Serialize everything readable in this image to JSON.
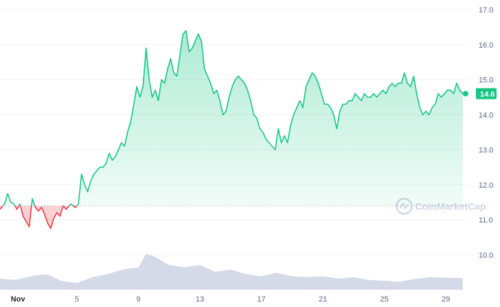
{
  "chart_data": {
    "type": "line",
    "x_tick_labels": [
      "Nov",
      "5",
      "9",
      "13",
      "17",
      "21",
      "25",
      "29"
    ],
    "y_tick_labels": [
      "10.0",
      "11.0",
      "12.0",
      "13.0",
      "14.0",
      "15.0",
      "16.0",
      "17.0"
    ],
    "ylim": [
      9.0,
      17.0
    ],
    "xlim": [
      0,
      30.5
    ],
    "baseline_price": 11.4,
    "current_price_label": "14.6",
    "grid": "horizontal",
    "colors": {
      "up": "#16c784",
      "down": "#ea3943",
      "volume": "#cfd6e4",
      "badge": "#16c784"
    },
    "watermark": "CoinMarketCap",
    "series": [
      {
        "values": [
          [
            0.0,
            11.3
          ],
          [
            0.3,
            11.45
          ],
          [
            0.5,
            11.75
          ],
          [
            0.7,
            11.5
          ],
          [
            0.9,
            11.45
          ],
          [
            1.1,
            11.3
          ],
          [
            1.3,
            11.45
          ],
          [
            1.5,
            11.1
          ],
          [
            1.7,
            10.95
          ],
          [
            1.9,
            10.8
          ],
          [
            2.1,
            11.6
          ],
          [
            2.3,
            11.35
          ],
          [
            2.5,
            11.25
          ],
          [
            2.7,
            11.35
          ],
          [
            2.9,
            11.15
          ],
          [
            3.1,
            10.9
          ],
          [
            3.3,
            10.75
          ],
          [
            3.5,
            11.05
          ],
          [
            3.7,
            11.2
          ],
          [
            3.9,
            11.1
          ],
          [
            4.1,
            11.4
          ],
          [
            4.3,
            11.3
          ],
          [
            4.6,
            11.45
          ],
          [
            4.9,
            11.35
          ],
          [
            5.1,
            11.45
          ],
          [
            5.3,
            12.3
          ],
          [
            5.5,
            12.0
          ],
          [
            5.7,
            11.8
          ],
          [
            5.9,
            12.1
          ],
          [
            6.1,
            12.3
          ],
          [
            6.3,
            12.4
          ],
          [
            6.5,
            12.5
          ],
          [
            6.7,
            12.5
          ],
          [
            6.9,
            12.6
          ],
          [
            7.1,
            12.9
          ],
          [
            7.3,
            12.7
          ],
          [
            7.5,
            12.8
          ],
          [
            7.7,
            13.0
          ],
          [
            7.9,
            13.2
          ],
          [
            8.1,
            13.1
          ],
          [
            8.3,
            13.5
          ],
          [
            8.5,
            13.8
          ],
          [
            8.7,
            14.3
          ],
          [
            8.9,
            14.8
          ],
          [
            9.1,
            14.5
          ],
          [
            9.3,
            14.8
          ],
          [
            9.5,
            15.9
          ],
          [
            9.7,
            15.0
          ],
          [
            9.9,
            14.5
          ],
          [
            10.1,
            14.7
          ],
          [
            10.3,
            14.4
          ],
          [
            10.5,
            15.0
          ],
          [
            10.7,
            14.9
          ],
          [
            10.9,
            15.3
          ],
          [
            11.1,
            15.6
          ],
          [
            11.3,
            15.2
          ],
          [
            11.5,
            15.1
          ],
          [
            11.7,
            15.7
          ],
          [
            11.9,
            16.3
          ],
          [
            12.1,
            16.4
          ],
          [
            12.3,
            15.8
          ],
          [
            12.5,
            15.9
          ],
          [
            12.7,
            16.1
          ],
          [
            12.9,
            16.3
          ],
          [
            13.1,
            16.1
          ],
          [
            13.3,
            15.3
          ],
          [
            13.5,
            15.1
          ],
          [
            13.7,
            14.9
          ],
          [
            13.9,
            14.6
          ],
          [
            14.1,
            14.7
          ],
          [
            14.3,
            14.4
          ],
          [
            14.5,
            14.0
          ],
          [
            14.7,
            14.1
          ],
          [
            14.9,
            14.5
          ],
          [
            15.1,
            14.8
          ],
          [
            15.3,
            15.0
          ],
          [
            15.5,
            15.1
          ],
          [
            15.7,
            15.0
          ],
          [
            15.9,
            14.9
          ],
          [
            16.1,
            14.7
          ],
          [
            16.3,
            14.4
          ],
          [
            16.5,
            14.0
          ],
          [
            16.7,
            13.9
          ],
          [
            16.9,
            13.6
          ],
          [
            17.1,
            13.5
          ],
          [
            17.3,
            13.3
          ],
          [
            17.5,
            13.2
          ],
          [
            17.7,
            13.1
          ],
          [
            17.9,
            13.0
          ],
          [
            18.1,
            13.6
          ],
          [
            18.3,
            13.2
          ],
          [
            18.5,
            13.4
          ],
          [
            18.7,
            13.2
          ],
          [
            18.9,
            13.7
          ],
          [
            19.1,
            14.0
          ],
          [
            19.3,
            14.2
          ],
          [
            19.5,
            14.4
          ],
          [
            19.7,
            14.2
          ],
          [
            19.9,
            14.8
          ],
          [
            20.1,
            15.0
          ],
          [
            20.3,
            15.2
          ],
          [
            20.5,
            15.1
          ],
          [
            20.7,
            14.9
          ],
          [
            20.9,
            14.6
          ],
          [
            21.1,
            14.3
          ],
          [
            21.3,
            14.3
          ],
          [
            21.5,
            14.2
          ],
          [
            21.7,
            14.0
          ],
          [
            21.9,
            13.6
          ],
          [
            22.1,
            14.1
          ],
          [
            22.3,
            14.3
          ],
          [
            22.5,
            14.3
          ],
          [
            22.7,
            14.4
          ],
          [
            22.9,
            14.4
          ],
          [
            23.1,
            14.6
          ],
          [
            23.3,
            14.5
          ],
          [
            23.5,
            14.4
          ],
          [
            23.7,
            14.6
          ],
          [
            23.9,
            14.5
          ],
          [
            24.1,
            14.5
          ],
          [
            24.3,
            14.6
          ],
          [
            24.5,
            14.5
          ],
          [
            24.7,
            14.6
          ],
          [
            24.9,
            14.7
          ],
          [
            25.1,
            14.6
          ],
          [
            25.3,
            14.8
          ],
          [
            25.5,
            14.9
          ],
          [
            25.7,
            14.8
          ],
          [
            25.9,
            14.9
          ],
          [
            26.1,
            14.9
          ],
          [
            26.3,
            15.2
          ],
          [
            26.5,
            14.9
          ],
          [
            26.7,
            14.8
          ],
          [
            26.9,
            15.1
          ],
          [
            27.1,
            14.6
          ],
          [
            27.3,
            14.2
          ],
          [
            27.5,
            14.0
          ],
          [
            27.7,
            14.1
          ],
          [
            27.9,
            14.0
          ],
          [
            28.1,
            14.2
          ],
          [
            28.3,
            14.3
          ],
          [
            28.5,
            14.6
          ],
          [
            28.7,
            14.5
          ],
          [
            28.9,
            14.6
          ],
          [
            29.1,
            14.7
          ],
          [
            29.3,
            14.7
          ],
          [
            29.5,
            14.6
          ],
          [
            29.7,
            14.9
          ],
          [
            29.9,
            14.7
          ],
          [
            30.1,
            14.6
          ]
        ]
      }
    ],
    "volume": [
      [
        0.0,
        0.25
      ],
      [
        1.0,
        0.22
      ],
      [
        2.0,
        0.3
      ],
      [
        3.0,
        0.35
      ],
      [
        4.0,
        0.2
      ],
      [
        5.0,
        0.15
      ],
      [
        6.0,
        0.28
      ],
      [
        7.0,
        0.35
      ],
      [
        8.0,
        0.45
      ],
      [
        9.0,
        0.5
      ],
      [
        9.5,
        0.8
      ],
      [
        10.0,
        0.75
      ],
      [
        11.0,
        0.55
      ],
      [
        12.0,
        0.5
      ],
      [
        13.0,
        0.55
      ],
      [
        14.0,
        0.4
      ],
      [
        15.0,
        0.45
      ],
      [
        16.0,
        0.35
      ],
      [
        17.0,
        0.3
      ],
      [
        18.0,
        0.38
      ],
      [
        19.0,
        0.3
      ],
      [
        20.0,
        0.28
      ],
      [
        21.0,
        0.3
      ],
      [
        22.0,
        0.25
      ],
      [
        23.0,
        0.28
      ],
      [
        24.0,
        0.22
      ],
      [
        25.0,
        0.2
      ],
      [
        26.0,
        0.18
      ],
      [
        27.0,
        0.24
      ],
      [
        28.0,
        0.28
      ],
      [
        29.0,
        0.27
      ],
      [
        30.1,
        0.26
      ]
    ]
  }
}
